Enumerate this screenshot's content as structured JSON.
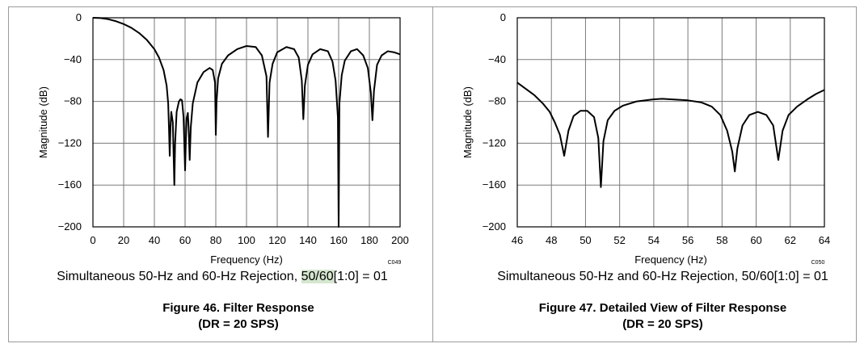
{
  "chart_data": [
    {
      "type": "line",
      "title": "Figure 46. Filter Response",
      "subtitle": "(DR = 20 SPS)",
      "caption": {
        "prefix": "Simultaneous 50-Hz and 60-Hz Rejection, ",
        "highlight": "50/60",
        "suffix": "[1:0] = 01"
      },
      "xlabel": "Frequency (Hz)",
      "ylabel": "Magnitude (dB)",
      "code": "C049",
      "xlim": [
        0,
        200
      ],
      "ylim": [
        -200,
        0
      ],
      "xticks": [
        "0",
        "20",
        "40",
        "60",
        "80",
        "100",
        "120",
        "140",
        "160",
        "180",
        "200"
      ],
      "yticks": [
        "0",
        "−40",
        "−80",
        "−120",
        "−160",
        "−200"
      ],
      "grid": true,
      "series": [
        {
          "points": [
            [
              0,
              0
            ],
            [
              5,
              -0.3
            ],
            [
              10,
              -1.4
            ],
            [
              15,
              -3.3
            ],
            [
              20,
              -6
            ],
            [
              25,
              -9.6
            ],
            [
              30,
              -14.5
            ],
            [
              35,
              -21
            ],
            [
              40,
              -30
            ],
            [
              43,
              -38
            ],
            [
              46,
              -50
            ],
            [
              48,
              -65
            ],
            [
              49,
              -82
            ],
            [
              49.5,
              -105
            ],
            [
              50,
              -132
            ],
            [
              50.5,
              -105
            ],
            [
              51,
              -90
            ],
            [
              52,
              -100
            ],
            [
              52.5,
              -130
            ],
            [
              53,
              -160
            ],
            [
              53.5,
              -120
            ],
            [
              54.5,
              -90
            ],
            [
              56,
              -80
            ],
            [
              57,
              -78
            ],
            [
              58,
              -79
            ],
            [
              59,
              -95
            ],
            [
              59.5,
              -120
            ],
            [
              60,
              -146
            ],
            [
              60.5,
              -118
            ],
            [
              61,
              -96
            ],
            [
              61.8,
              -91
            ],
            [
              62.3,
              -105
            ],
            [
              63,
              -136
            ],
            [
              63.7,
              -105
            ],
            [
              65,
              -82
            ],
            [
              68,
              -62
            ],
            [
              72,
              -52
            ],
            [
              76,
              -48
            ],
            [
              78,
              -50
            ],
            [
              79.5,
              -62
            ],
            [
              80,
              -112
            ],
            [
              80.5,
              -80
            ],
            [
              81.5,
              -58
            ],
            [
              84,
              -44
            ],
            [
              88,
              -36
            ],
            [
              94,
              -30
            ],
            [
              100,
              -27
            ],
            [
              106,
              -28
            ],
            [
              110,
              -36
            ],
            [
              113,
              -56
            ],
            [
              114,
              -114
            ],
            [
              115,
              -62
            ],
            [
              117,
              -44
            ],
            [
              120,
              -33
            ],
            [
              126,
              -28
            ],
            [
              131,
              -30
            ],
            [
              134,
              -38
            ],
            [
              136,
              -60
            ],
            [
              137,
              -97
            ],
            [
              138,
              -65
            ],
            [
              140,
              -45
            ],
            [
              143,
              -35
            ],
            [
              148,
              -30
            ],
            [
              153,
              -32
            ],
            [
              156,
              -42
            ],
            [
              158,
              -60
            ],
            [
              159.5,
              -95
            ],
            [
              160,
              -200
            ],
            [
              160.5,
              -82
            ],
            [
              162,
              -55
            ],
            [
              164,
              -41
            ],
            [
              168,
              -32
            ],
            [
              172,
              -30
            ],
            [
              176,
              -36
            ],
            [
              179,
              -48
            ],
            [
              181,
              -72
            ],
            [
              182,
              -98
            ],
            [
              183,
              -70
            ],
            [
              185,
              -45
            ],
            [
              188,
              -36
            ],
            [
              192,
              -32
            ],
            [
              196,
              -33
            ],
            [
              200,
              -35
            ]
          ]
        }
      ]
    },
    {
      "type": "line",
      "title": "Figure 47. Detailed View of Filter Response",
      "subtitle": "(DR = 20 SPS)",
      "caption": {
        "prefix": "Simultaneous 50-Hz and 60-Hz Rejection, 50/60[1:0] = 01",
        "highlight": "",
        "suffix": ""
      },
      "xlabel": "Frequency (Hz)",
      "ylabel": "Magnitude (dB)",
      "code": "C050",
      "xlim": [
        46,
        64
      ],
      "ylim": [
        -200,
        0
      ],
      "xticks": [
        "46",
        "48",
        "50",
        "52",
        "54",
        "56",
        "58",
        "60",
        "62",
        "64"
      ],
      "yticks": [
        "0",
        "−40",
        "−80",
        "−120",
        "−160",
        "−200"
      ],
      "grid": true,
      "series": [
        {
          "points": [
            [
              46,
              -62
            ],
            [
              46.5,
              -68
            ],
            [
              47,
              -74
            ],
            [
              47.5,
              -82
            ],
            [
              47.9,
              -90
            ],
            [
              48.2,
              -100
            ],
            [
              48.5,
              -112
            ],
            [
              48.75,
              -132
            ],
            [
              49,
              -108
            ],
            [
              49.3,
              -94
            ],
            [
              49.7,
              -89
            ],
            [
              50.1,
              -89
            ],
            [
              50.5,
              -95
            ],
            [
              50.75,
              -115
            ],
            [
              50.9,
              -162
            ],
            [
              51.05,
              -118
            ],
            [
              51.3,
              -98
            ],
            [
              51.7,
              -89
            ],
            [
              52.2,
              -84
            ],
            [
              53,
              -80
            ],
            [
              54,
              -78
            ],
            [
              54.5,
              -77.5
            ],
            [
              55,
              -78
            ],
            [
              56,
              -79
            ],
            [
              56.8,
              -81
            ],
            [
              57.4,
              -85
            ],
            [
              57.9,
              -93
            ],
            [
              58.3,
              -108
            ],
            [
              58.6,
              -128
            ],
            [
              58.75,
              -147
            ],
            [
              58.9,
              -125
            ],
            [
              59.2,
              -103
            ],
            [
              59.6,
              -93
            ],
            [
              60.1,
              -90
            ],
            [
              60.6,
              -93
            ],
            [
              61.0,
              -103
            ],
            [
              61.3,
              -136
            ],
            [
              61.55,
              -108
            ],
            [
              61.9,
              -93
            ],
            [
              62.4,
              -85
            ],
            [
              63,
              -78
            ],
            [
              63.5,
              -73
            ],
            [
              64,
              -69
            ]
          ]
        }
      ]
    }
  ]
}
